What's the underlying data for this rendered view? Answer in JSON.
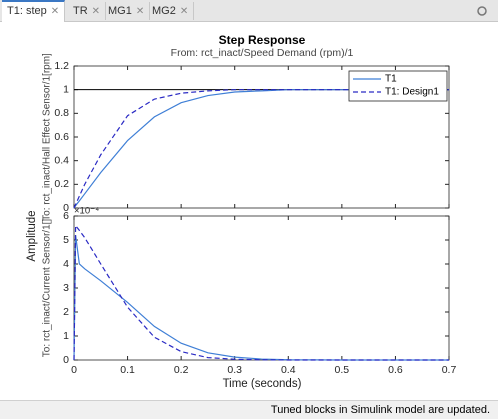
{
  "tabs": [
    {
      "label": "T1: step"
    },
    {
      "label": "TR"
    },
    {
      "label": "MG1"
    },
    {
      "label": "MG2"
    }
  ],
  "figure": {
    "title": "Step Response",
    "subtitle": "From: rct_inact/Speed Demand  (rpm)/1",
    "xlabel": "Time (seconds)",
    "ylabel": "Amplitude"
  },
  "status": "Tuned blocks in Simulink model are updated.",
  "chart_data": [
    {
      "type": "line",
      "ylabel": "To: rct_inact/Hall  Effect  Sensor/1[rpm]",
      "x": [
        0,
        0.003,
        0.01,
        0.02,
        0.05,
        0.1,
        0.15,
        0.2,
        0.25,
        0.3,
        0.35,
        0.4,
        0.5,
        0.6,
        0.7
      ],
      "series": [
        {
          "name": "T1",
          "color": "#3f7fd6",
          "dash": "solid",
          "values": [
            0,
            0.02,
            0.06,
            0.12,
            0.3,
            0.57,
            0.77,
            0.89,
            0.95,
            0.98,
            0.99,
            1,
            1,
            1,
            1
          ]
        },
        {
          "name": "T1: Design1",
          "color": "#2a2ac4",
          "dash": "dashed",
          "values": [
            0,
            0.03,
            0.1,
            0.2,
            0.45,
            0.78,
            0.92,
            0.97,
            0.99,
            1,
            1,
            1,
            1,
            1,
            1
          ]
        }
      ],
      "reference": 1,
      "xlim": [
        0,
        0.7
      ],
      "ylim": [
        0,
        1.2
      ],
      "xticks": [
        0,
        0.1,
        0.2,
        0.3,
        0.4,
        0.5,
        0.6,
        0.7
      ],
      "yticks": [
        0,
        0.2,
        0.4,
        0.6,
        0.8,
        1,
        1.2
      ],
      "legend": "upper right"
    },
    {
      "type": "line",
      "ylabel": "To: rct_inact/Current  Sensor/1[]",
      "y_exponent": "×10⁻⁴",
      "x": [
        0,
        0.003,
        0.01,
        0.02,
        0.05,
        0.1,
        0.15,
        0.2,
        0.25,
        0.3,
        0.35,
        0.4,
        0.5,
        0.6,
        0.7
      ],
      "series": [
        {
          "name": "T1",
          "color": "#3f7fd6",
          "dash": "solid",
          "values": [
            0,
            5.2,
            4.0,
            3.8,
            3.3,
            2.4,
            1.4,
            0.7,
            0.3,
            0.12,
            0.04,
            0.01,
            0,
            0,
            0
          ]
        },
        {
          "name": "T1: Design1",
          "color": "#2a2ac4",
          "dash": "dashed",
          "values": [
            0,
            5.6,
            5.4,
            5.1,
            4.0,
            2.2,
            0.95,
            0.35,
            0.1,
            0.03,
            0.01,
            0,
            0,
            0,
            0
          ]
        }
      ],
      "xlim": [
        0,
        0.7
      ],
      "ylim": [
        0,
        6
      ],
      "xticks": [
        0,
        0.1,
        0.2,
        0.3,
        0.4,
        0.5,
        0.6,
        0.7
      ],
      "yticks": [
        0,
        1,
        2,
        3,
        4,
        5,
        6
      ]
    }
  ]
}
